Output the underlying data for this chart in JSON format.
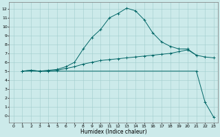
{
  "xlabel": "Humidex (Indice chaleur)",
  "bg_color": "#cceaea",
  "grid_color": "#a0cccc",
  "line_color": "#006666",
  "xlim": [
    -0.5,
    23.5
  ],
  "ylim": [
    -0.8,
    12.8
  ],
  "xticks": [
    0,
    1,
    2,
    3,
    4,
    5,
    6,
    7,
    8,
    9,
    10,
    11,
    12,
    13,
    14,
    15,
    16,
    17,
    18,
    19,
    20,
    21,
    22,
    23
  ],
  "yticks": [
    0,
    1,
    2,
    3,
    4,
    5,
    6,
    7,
    8,
    9,
    10,
    11,
    12
  ],
  "line1_x": [
    1,
    2,
    3,
    4,
    5,
    6,
    7,
    8,
    9,
    10,
    11,
    12,
    13,
    14,
    15,
    16,
    17,
    18,
    19,
    20,
    21,
    22,
    23
  ],
  "line1_y": [
    5.0,
    5.1,
    5.0,
    5.0,
    5.1,
    5.3,
    5.5,
    5.8,
    6.0,
    6.2,
    6.3,
    6.4,
    6.5,
    6.6,
    6.7,
    6.8,
    6.9,
    7.0,
    7.2,
    7.4,
    6.8,
    6.6,
    6.5
  ],
  "line2_x": [
    1,
    2,
    3,
    4,
    5,
    6,
    7,
    8,
    9,
    10,
    11,
    12,
    13,
    14,
    15,
    16,
    17,
    18,
    19,
    20,
    21
  ],
  "line2_y": [
    5.0,
    5.1,
    5.0,
    5.1,
    5.2,
    5.5,
    6.0,
    7.5,
    8.8,
    9.7,
    11.0,
    11.5,
    12.1,
    11.8,
    10.8,
    9.3,
    8.3,
    7.8,
    7.5,
    7.5,
    6.8
  ],
  "line3_x": [
    1,
    21,
    22,
    23
  ],
  "line3_y": [
    5.0,
    5.0,
    1.5,
    -0.2
  ]
}
